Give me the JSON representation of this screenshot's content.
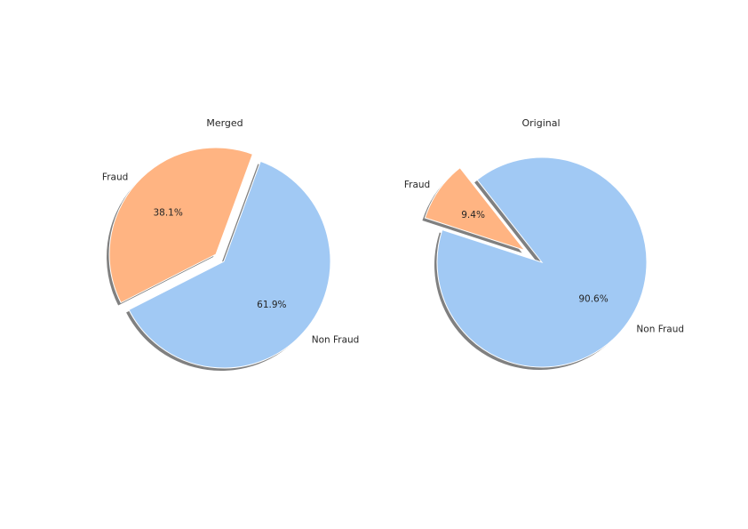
{
  "chart_data": [
    {
      "type": "pie",
      "title": "Merged",
      "categories": [
        "Non Fraud",
        "Fraud"
      ],
      "values": [
        61.9,
        38.1
      ],
      "value_labels": [
        "61.9%",
        "38.1%"
      ],
      "explode": [
        0,
        0.1
      ],
      "shadow": true,
      "colors": [
        "#a1c9f4",
        "#ffb482"
      ]
    },
    {
      "type": "pie",
      "title": "Original",
      "categories": [
        "Non Fraud",
        "Fraud"
      ],
      "values": [
        90.6,
        9.4
      ],
      "value_labels": [
        "90.6%",
        "9.4%"
      ],
      "explode": [
        0,
        0.2
      ],
      "shadow": true,
      "colors": [
        "#a1c9f4",
        "#ffb482"
      ]
    }
  ]
}
